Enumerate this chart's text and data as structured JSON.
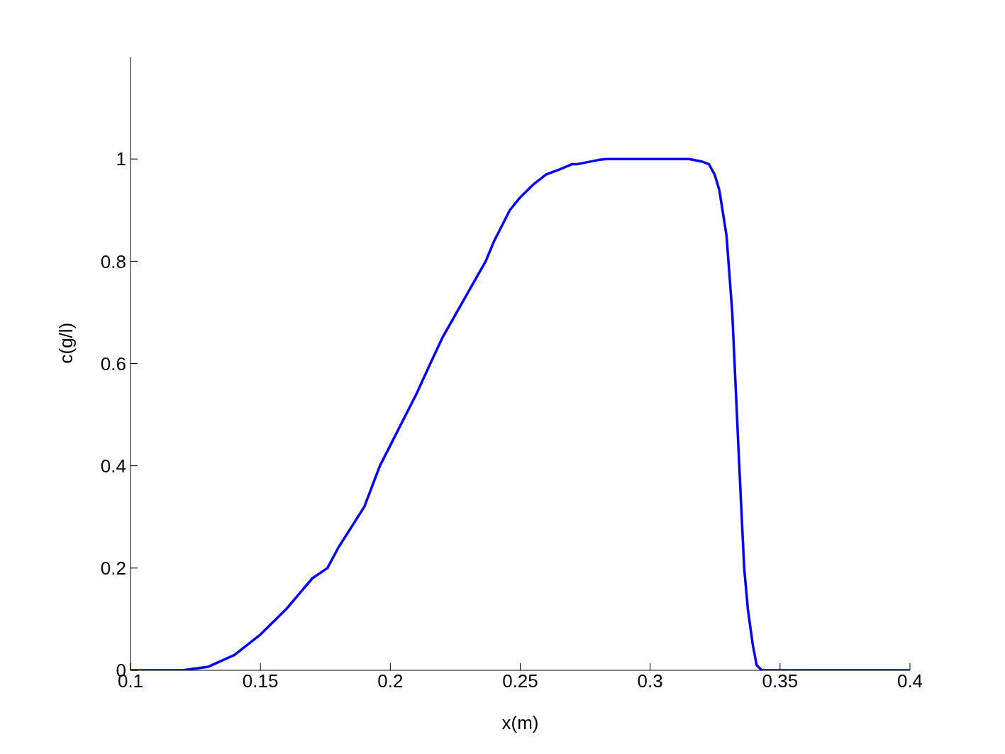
{
  "chart_data": {
    "type": "line",
    "xlabel": "x(m)",
    "ylabel": "c(g/l)",
    "series": [
      {
        "color": "#0000ff",
        "x": [
          0.1,
          0.12,
          0.13,
          0.14,
          0.15,
          0.16,
          0.165,
          0.17,
          0.1758,
          0.18,
          0.19,
          0.196,
          0.2,
          0.21,
          0.2154,
          0.22,
          0.23,
          0.2367,
          0.24,
          0.246,
          0.25,
          0.255,
          0.26,
          0.2653,
          0.27,
          0.272,
          0.28,
          0.283,
          0.3,
          0.315,
          0.32,
          0.3226,
          0.3248,
          0.3266,
          0.3294,
          0.3316,
          0.3343,
          0.3362,
          0.3376,
          0.3395,
          0.341,
          0.343,
          0.36,
          0.385,
          0.4
        ],
        "values": [
          0,
          0,
          0.007,
          0.03,
          0.07,
          0.12,
          0.15,
          0.18,
          0.2,
          0.24,
          0.32,
          0.4,
          0.44,
          0.54,
          0.6,
          0.65,
          0.74,
          0.8,
          0.84,
          0.9,
          0.925,
          0.95,
          0.97,
          0.98,
          0.99,
          0.99,
          0.998,
          1,
          1,
          1,
          0.995,
          0.99,
          0.97,
          0.94,
          0.85,
          0.7,
          0.4,
          0.2,
          0.12,
          0.05,
          0.01,
          0,
          0,
          0,
          0
        ]
      }
    ],
    "xlim": [
      0.1,
      0.4
    ],
    "xticks": [
      0.1,
      0.15,
      0.2,
      0.25,
      0.3,
      0.35,
      0.4
    ],
    "ylim": [
      0,
      1.2
    ],
    "yticks": [
      0,
      0.2,
      0.4,
      0.6,
      0.8,
      1
    ],
    "grid": false,
    "legend": false,
    "marker": "none",
    "line_style": "solid"
  }
}
